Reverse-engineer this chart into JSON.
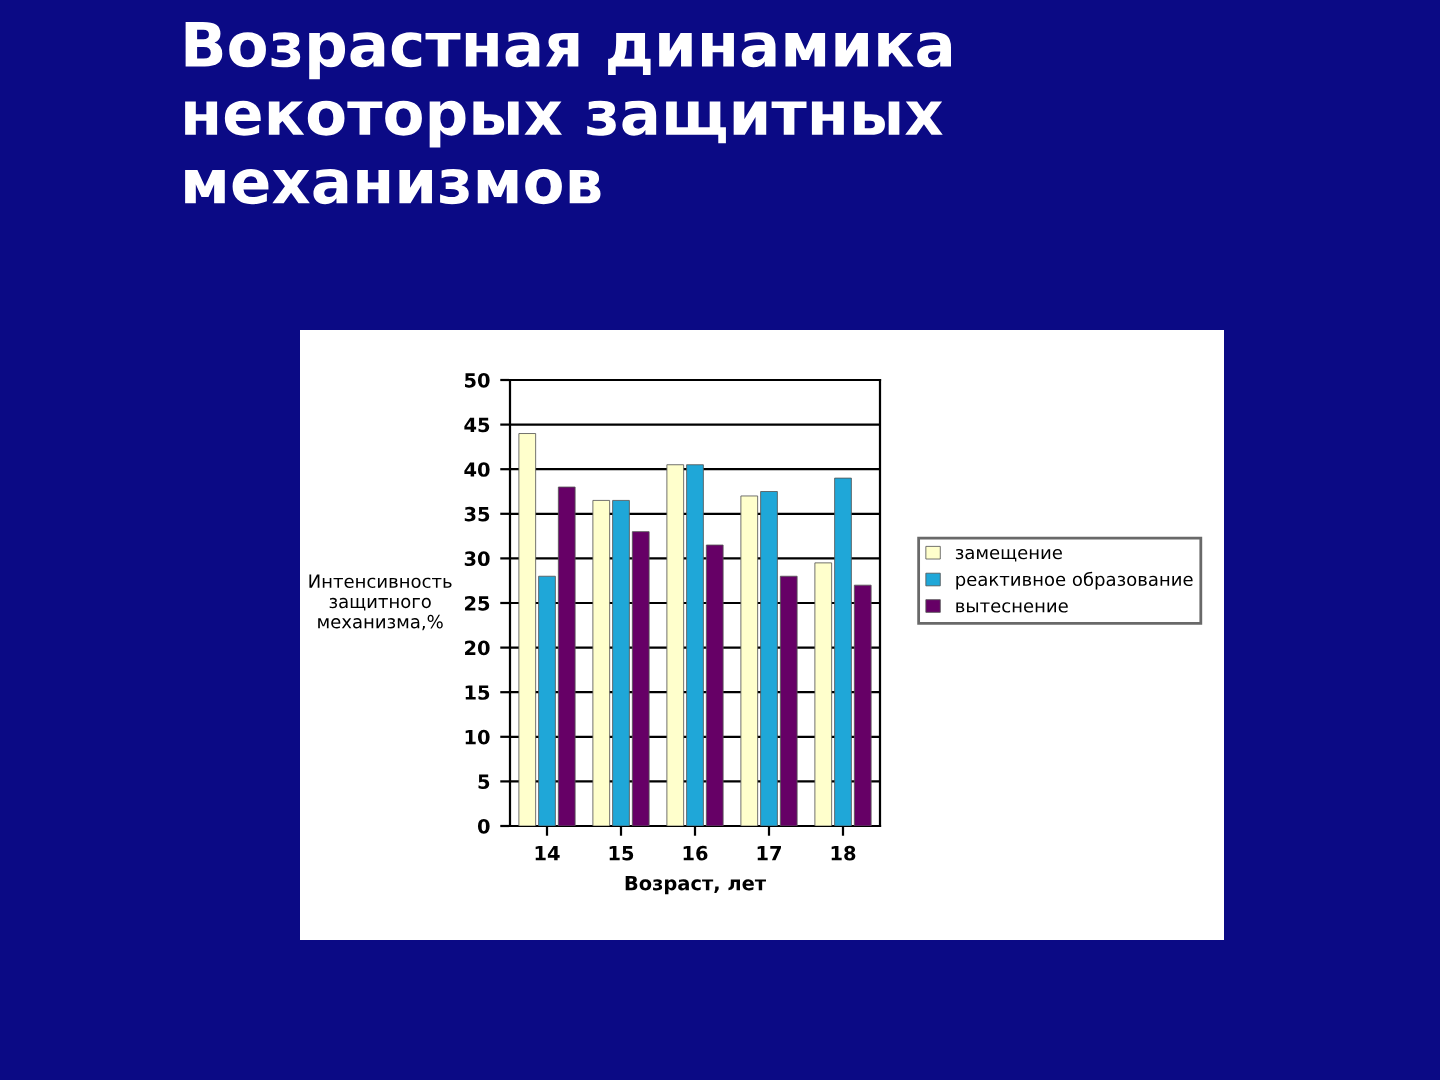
{
  "chart_data": {
    "type": "bar",
    "title": "Возрастная динамика\nнекоторых защитных\nмеханизмов",
    "xlabel": "Возраст, лет",
    "ylabel": "Интенсивность\nзащитного\nмеханизма,%",
    "categories": [
      "14",
      "15",
      "16",
      "17",
      "18"
    ],
    "series": [
      {
        "name": "замещение",
        "color": "#ffffcc",
        "values": [
          44,
          36.5,
          40.5,
          37,
          29.5
        ]
      },
      {
        "name": "реактивное образование",
        "color": "#1fa7d8",
        "values": [
          28,
          36.5,
          40.5,
          37.5,
          39
        ]
      },
      {
        "name": "вытеснение",
        "color": "#660066",
        "values": [
          38,
          33,
          31.5,
          28,
          27
        ]
      }
    ],
    "ylim": [
      0,
      50
    ],
    "yticks": [
      0,
      5,
      10,
      15,
      20,
      25,
      30,
      35,
      40,
      45,
      50
    ],
    "grid": "y",
    "legend": "right"
  }
}
